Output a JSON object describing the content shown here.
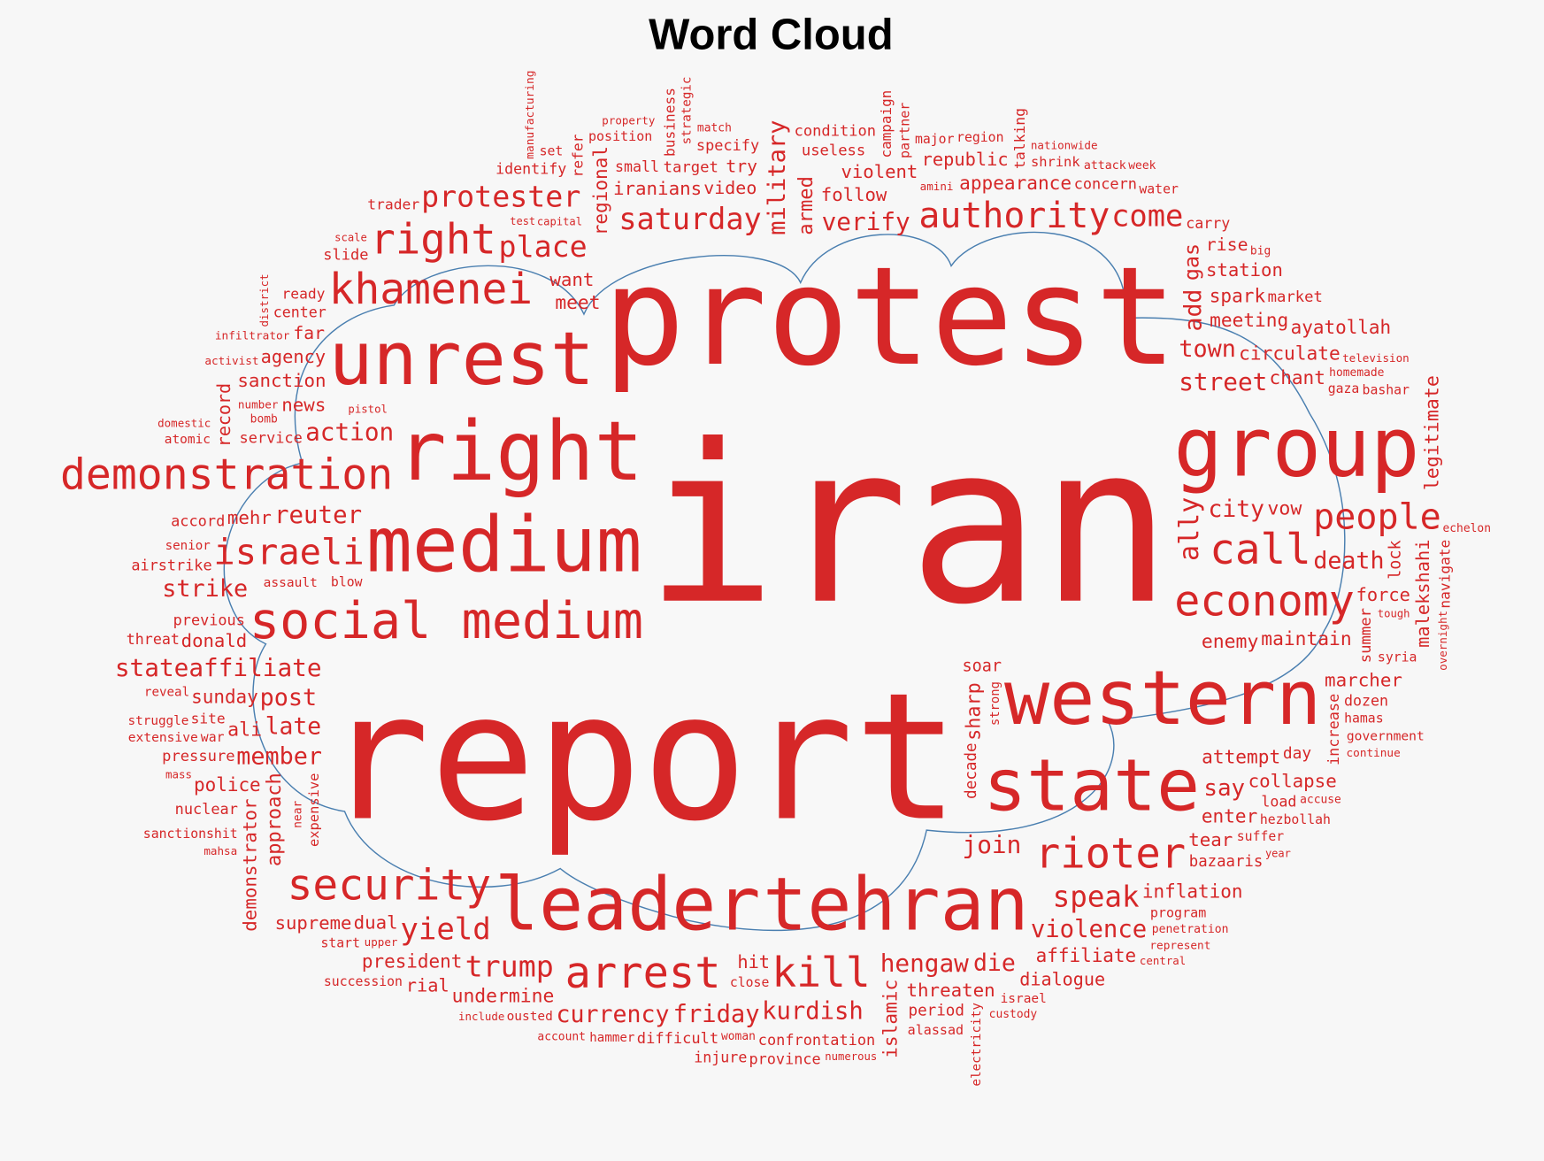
{
  "chart_data": {
    "type": "wordcloud",
    "title": "Word Cloud",
    "word_color": "#d62728",
    "outline_color": "#4a7fb0",
    "background": "#f7f7f7",
    "shape": "cloud",
    "words": [
      "protest",
      "iran",
      "report",
      "right",
      "group",
      "medium",
      "unrest",
      "western",
      "state",
      "tehran",
      "leader",
      "social medium",
      "demonstration",
      "khamenei",
      "israeli",
      "economy",
      "security",
      "arrest",
      "kill",
      "authority",
      "call",
      "people",
      "rioter",
      "right",
      "protester",
      "saturday",
      "come",
      "verify",
      "place",
      "action",
      "speak",
      "yield",
      "trump",
      "friday",
      "kurdish",
      "street",
      "town",
      "hengaw",
      "join",
      "stateaffiliate",
      "reuter",
      "late",
      "post",
      "member",
      "currency",
      "violence",
      "dialogue",
      "strike",
      "death",
      "force",
      "maintain",
      "ayatollah",
      "circulate",
      "chant",
      "spark",
      "market",
      "appearance",
      "concern",
      "meeting",
      "carry",
      "violent",
      "rise",
      "city",
      "station",
      "soar",
      "useless",
      "republic",
      "collapse",
      "dozen",
      "follow",
      "condition",
      "video",
      "try",
      "specify",
      "small",
      "target",
      "iranians",
      "meet",
      "agency",
      "identify",
      "want",
      "slide",
      "capital",
      "far",
      "trader",
      "scale",
      "pistol",
      "center",
      "ready",
      "news",
      "sanction",
      "service",
      "bomb",
      "blow",
      "atomic",
      "domestic",
      "activist",
      "infiltrator",
      "accord",
      "senior",
      "airstrike",
      "assault",
      "test",
      "number",
      "mehr",
      "threat",
      "donald",
      "confrontation",
      "upper",
      "reveal",
      "site",
      "sunday",
      "police",
      "pressure",
      "struggle",
      "war",
      "ali",
      "mass",
      "extensive",
      "previous",
      "mahsa",
      "hammer",
      "account",
      "program",
      "tear",
      "bazaaris",
      "load",
      "government",
      "enemy",
      "marcher",
      "hamas",
      "penetration",
      "hezbollah",
      "accuse",
      "attempt",
      "enter",
      "year",
      "say",
      "represent",
      "inflation",
      "affiliate",
      "central",
      "threaten",
      "alassad",
      "die",
      "israel",
      "period",
      "hit",
      "close",
      "injure",
      "president",
      "ousted",
      "rial",
      "start",
      "sanctionshit",
      "nuclear",
      "supreme",
      "succession",
      "undermine",
      "woman",
      "dual",
      "include",
      "difficult",
      "province",
      "numerous",
      "custody",
      "day",
      "suffer",
      "continue",
      "vow",
      "gaza",
      "bashar",
      "television",
      "homemade",
      "echelon",
      "syria",
      "water",
      "big",
      "nationwide",
      "shrink",
      "week",
      "region",
      "major",
      "position",
      "match",
      "set",
      "property",
      "amini",
      "attack",
      "tough",
      "record",
      "district",
      "refer",
      "manufacturing",
      "strategic",
      "armed",
      "partner",
      "talking",
      "gas",
      "add",
      "legitimate",
      "lock",
      "ally",
      "business",
      "military",
      "regional",
      "campaign",
      "overnight",
      "increase",
      "summer",
      "malekshahi",
      "navigate",
      "demonstrator",
      "expensive",
      "approach",
      "sharp",
      "electricity",
      "islamic",
      "strong",
      "decade",
      "near"
    ]
  }
}
